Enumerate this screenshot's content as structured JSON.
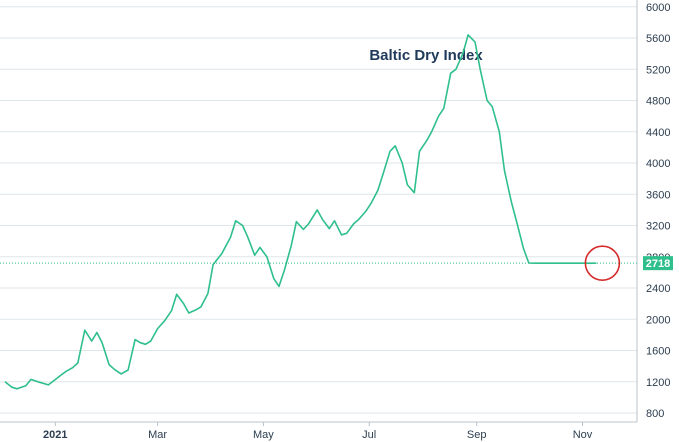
{
  "chart_data": {
    "type": "line",
    "title": "Baltic Dry Index",
    "xlabel": "",
    "ylabel": "",
    "ylim": [
      600,
      6000
    ],
    "y_ticks": [
      800,
      1200,
      1600,
      2000,
      2400,
      2800,
      3200,
      3600,
      4000,
      4400,
      4800,
      5200,
      5600,
      6000
    ],
    "x_ticks": [
      {
        "label": "2021",
        "x": "2021-01-01"
      },
      {
        "label": "Mar",
        "x": "2021-03-01"
      },
      {
        "label": "May",
        "x": "2021-05-01"
      },
      {
        "label": "Jul",
        "x": "2021-07-01"
      },
      {
        "label": "Sep",
        "x": "2021-09-01"
      },
      {
        "label": "Nov",
        "x": "2021-11-01"
      }
    ],
    "xlim": [
      "2020-12-03",
      "2021-11-18"
    ],
    "grid": true,
    "last_value_label": "2718",
    "colors": {
      "line": "#2fbf8c",
      "highlight_circle": "#d62b2b",
      "title": "#1f3a5a"
    },
    "series": [
      {
        "x": [
          "2020-12-03",
          "2020-12-07",
          "2020-12-10",
          "2020-12-15",
          "2020-12-18",
          "2020-12-22",
          "2020-12-28",
          "2021-01-04",
          "2021-01-07",
          "2021-01-11",
          "2021-01-14",
          "2021-01-18",
          "2021-01-22",
          "2021-01-25",
          "2021-01-28",
          "2021-02-01",
          "2021-02-04",
          "2021-02-08",
          "2021-02-12",
          "2021-02-16",
          "2021-02-19",
          "2021-02-22",
          "2021-02-25",
          "2021-03-01",
          "2021-03-05",
          "2021-03-09",
          "2021-03-12",
          "2021-03-16",
          "2021-03-19",
          "2021-03-23",
          "2021-03-26",
          "2021-03-30",
          "2021-04-02",
          "2021-04-07",
          "2021-04-12",
          "2021-04-15",
          "2021-04-19",
          "2021-04-22",
          "2021-04-26",
          "2021-04-29",
          "2021-05-03",
          "2021-05-07",
          "2021-05-10",
          "2021-05-13",
          "2021-05-17",
          "2021-05-20",
          "2021-05-24",
          "2021-05-27",
          "2021-06-01",
          "2021-06-04",
          "2021-06-08",
          "2021-06-11",
          "2021-06-15",
          "2021-06-18",
          "2021-06-22",
          "2021-06-25",
          "2021-06-29",
          "2021-07-02",
          "2021-07-06",
          "2021-07-09",
          "2021-07-13",
          "2021-07-16",
          "2021-07-20",
          "2021-07-23",
          "2021-07-27",
          "2021-07-30",
          "2021-08-03",
          "2021-08-06",
          "2021-08-10",
          "2021-08-13",
          "2021-08-17",
          "2021-08-20",
          "2021-08-24",
          "2021-08-27",
          "2021-08-31",
          "2021-09-03",
          "2021-09-07",
          "2021-09-10",
          "2021-09-14",
          "2021-09-17",
          "2021-09-21",
          "2021-09-24",
          "2021-09-28",
          "2021-10-01",
          "2021-10-05",
          "2021-10-08",
          "2021-10-12",
          "2021-10-15",
          "2021-10-19",
          "2021-10-22",
          "2021-10-26",
          "2021-10-29",
          "2021-11-02",
          "2021-11-05",
          "2021-11-09"
        ],
        "values": [
          1200,
          1130,
          1110,
          1150,
          1230,
          1200,
          1160,
          1280,
          1330,
          1380,
          1440,
          1860,
          1720,
          1830,
          1700,
          1420,
          1360,
          1300,
          1350,
          1740,
          1700,
          1680,
          1720,
          1880,
          1980,
          2110,
          2320,
          2200,
          2080,
          2120,
          2160,
          2330,
          2700,
          2840,
          3050,
          3260,
          3200,
          3050,
          2820,
          2920,
          2800,
          2520,
          2420,
          2620,
          2940,
          3250,
          3150,
          3220,
          3400,
          3280,
          3160,
          3260,
          3080,
          3100,
          3220,
          3280,
          3380,
          3480,
          3650,
          3860,
          4150,
          4220,
          4000,
          3720,
          3620,
          4150,
          4280,
          4400,
          4600,
          4700,
          5150,
          5200,
          5400,
          5640,
          5550,
          5200,
          4800,
          4720,
          4400,
          3900,
          3500,
          3250,
          2900,
          2720,
          2718,
          2718,
          2718,
          2718,
          2718,
          2718,
          2718,
          2718,
          2718,
          2718,
          2718
        ]
      }
    ]
  }
}
